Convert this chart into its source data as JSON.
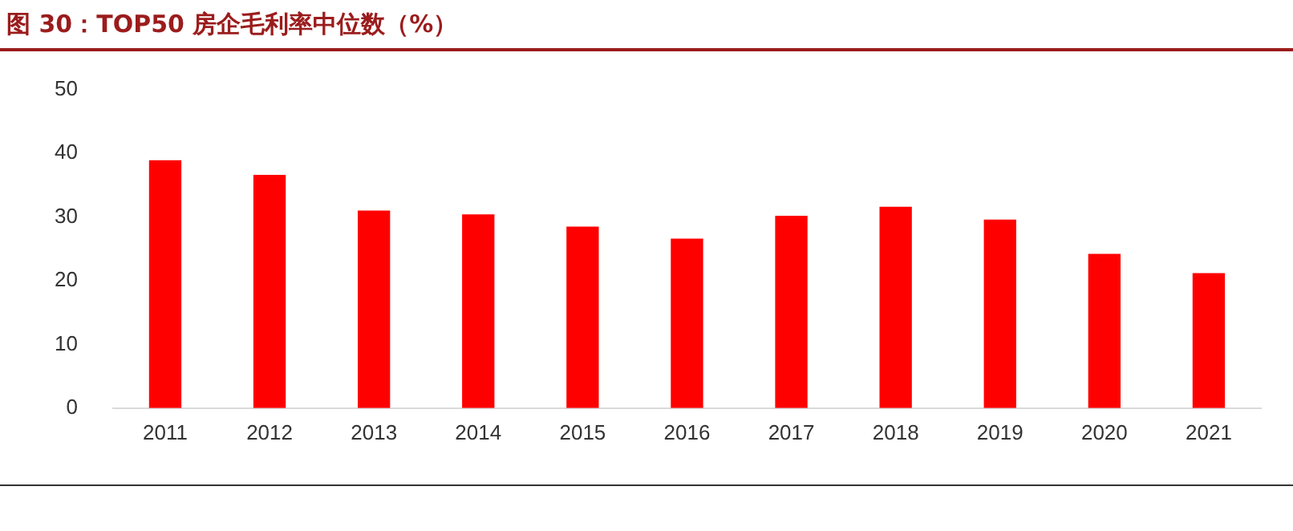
{
  "chart_data": {
    "type": "bar",
    "title": "图 30：TOP50 房企毛利率中位数（%）",
    "categories": [
      "2011",
      "2012",
      "2013",
      "2014",
      "2015",
      "2016",
      "2017",
      "2018",
      "2019",
      "2020",
      "2021"
    ],
    "values": [
      38.9,
      36.6,
      31.0,
      30.4,
      28.5,
      26.6,
      30.2,
      31.6,
      29.6,
      24.2,
      21.2
    ],
    "color": "#ff0000",
    "ylim": [
      0,
      50
    ],
    "yticks": [
      0,
      10,
      20,
      30,
      40,
      50
    ],
    "grid": false,
    "legend": false
  }
}
